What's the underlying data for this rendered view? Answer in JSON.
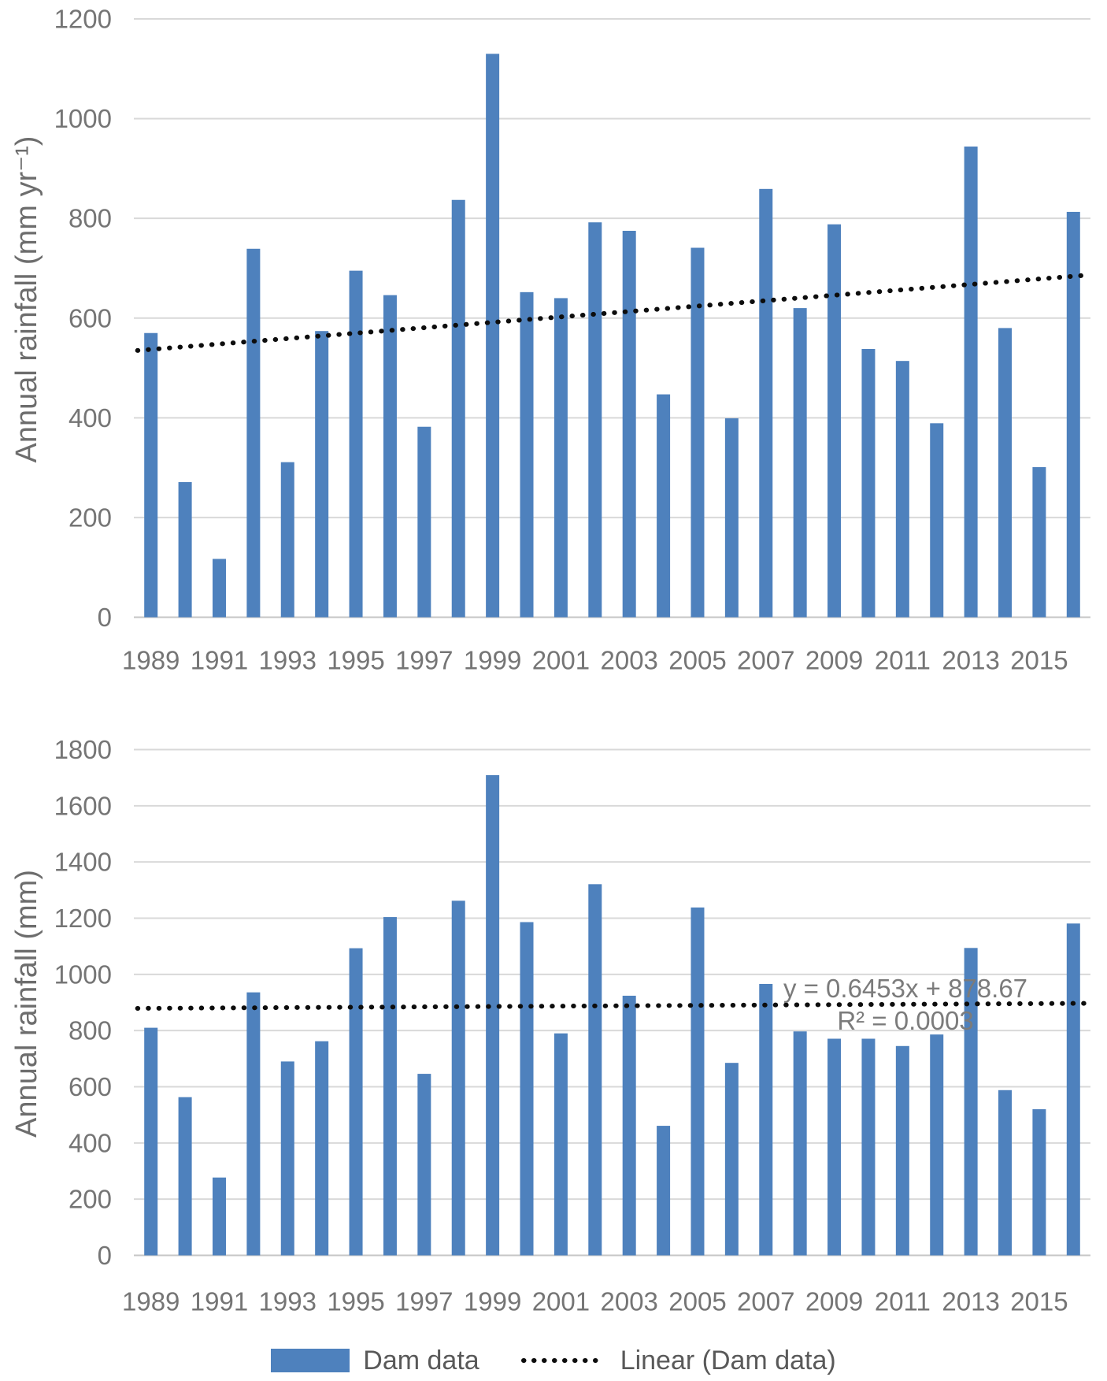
{
  "figure": {
    "background": "#ffffff",
    "panels": [
      "top",
      "bottom"
    ]
  },
  "legend": {
    "bar_label": "Dam data",
    "line_label": "Linear (Dam data)"
  },
  "colors": {
    "bar": "#4e81bd",
    "trend_line": "#0d0d0d",
    "gridline": "#d9d9d9",
    "axis_line": "#c6c6c6",
    "tick_text": "#757575",
    "axis_title_text": "#6d6d6d",
    "annotation_text": "#7b7b7b",
    "legend_text": "#595959"
  },
  "chart_data": [
    {
      "type": "bar",
      "panel": "top",
      "title": "",
      "xlabel": "",
      "ylabel": "Annual rainfall (mm yr⁻¹)",
      "ylim": [
        0,
        1200
      ],
      "ytick_step": 200,
      "y_tick_labels": [
        "1200",
        "1000",
        "800",
        "600",
        "400",
        "200",
        "0"
      ],
      "x_tick_labels": [
        "1989",
        "1991",
        "1993",
        "1995",
        "1997",
        "1999",
        "2001",
        "2003",
        "2005",
        "2007",
        "2009",
        "2011",
        "2013",
        "2015"
      ],
      "categories": [
        1989,
        1990,
        1991,
        1992,
        1993,
        1994,
        1995,
        1996,
        1997,
        1998,
        1999,
        2000,
        2001,
        2002,
        2003,
        2004,
        2005,
        2006,
        2007,
        2008,
        2009,
        2010,
        2011,
        2012,
        2013,
        2014,
        2015,
        2016
      ],
      "grid": true,
      "series": [
        {
          "name": "Dam data",
          "values": [
            570,
            271,
            117,
            739,
            311,
            574,
            695,
            646,
            382,
            837,
            1130,
            652,
            640,
            792,
            775,
            447,
            741,
            399,
            859,
            620,
            788,
            538,
            514,
            389,
            944,
            580,
            301,
            813
          ]
        }
      ],
      "trendline": {
        "name": "Linear (Dam data)",
        "style": "dotted",
        "value_at_first_year": 535,
        "value_at_last_year": 686,
        "equation": null
      }
    },
    {
      "type": "bar",
      "panel": "bottom",
      "title": "",
      "xlabel": "",
      "ylabel": "Annual rainfall (mm)",
      "ylim": [
        0,
        1800
      ],
      "ytick_step": 200,
      "y_tick_labels": [
        "1800",
        "1600",
        "1400",
        "1200",
        "1000",
        "800",
        "600",
        "400",
        "200",
        "0"
      ],
      "x_tick_labels": [
        "1989",
        "1991",
        "1993",
        "1995",
        "1997",
        "1999",
        "2001",
        "2003",
        "2005",
        "2007",
        "2009",
        "2011",
        "2013",
        "2015"
      ],
      "categories": [
        1989,
        1990,
        1991,
        1992,
        1993,
        1994,
        1995,
        1996,
        1997,
        1998,
        1999,
        2000,
        2001,
        2002,
        2003,
        2004,
        2005,
        2006,
        2007,
        2008,
        2009,
        2010,
        2011,
        2012,
        2013,
        2014,
        2015,
        2016
      ],
      "grid": true,
      "series": [
        {
          "name": "Dam data",
          "values": [
            810,
            563,
            277,
            936,
            690,
            762,
            1093,
            1204,
            646,
            1262,
            1709,
            1186,
            790,
            1321,
            924,
            461,
            1238,
            685,
            966,
            797,
            771,
            771,
            745,
            786,
            1094,
            588,
            520,
            1181
          ]
        }
      ],
      "trendline": {
        "name": "Linear (Dam data)",
        "style": "dotted",
        "value_at_first_year": 879,
        "value_at_last_year": 897,
        "equation": {
          "line1": "y = 0.6453x + 878.67",
          "line2": "R² = 0.0003"
        }
      }
    }
  ]
}
